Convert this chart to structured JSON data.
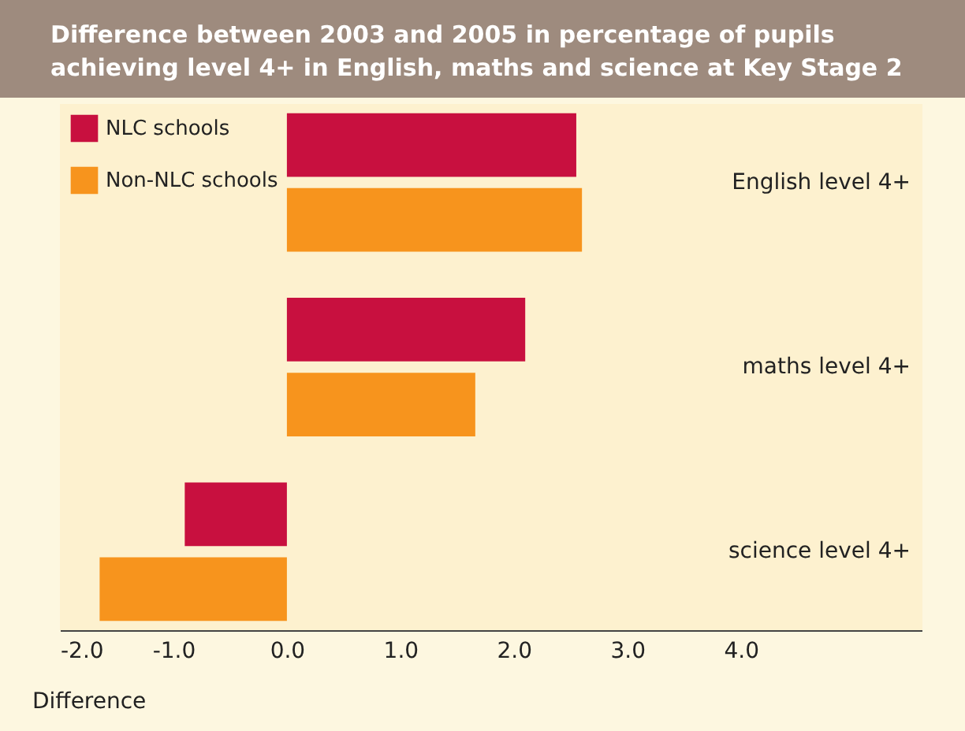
{
  "chart_data": {
    "type": "bar",
    "orientation": "horizontal",
    "title": "Difference between 2003 and 2005 in percentage of pupils achieving level 4+ in English, maths and science at Key Stage 2",
    "xlabel": "Difference",
    "categories": [
      "English level 4+",
      "maths level 4+",
      "science level 4+"
    ],
    "series": [
      {
        "name": "NLC schools",
        "color": "#c8103f",
        "values": [
          2.55,
          2.1,
          -0.9
        ]
      },
      {
        "name": "Non-NLC schools",
        "color": "#f7941d",
        "values": [
          2.6,
          1.66,
          -1.65
        ]
      }
    ],
    "xlim": [
      -2.0,
      5.6
    ],
    "xticks": [
      {
        "value": -2,
        "label": "-2.0"
      },
      {
        "value": -1,
        "label": "-1.0"
      },
      {
        "value": 0,
        "label": "0.0"
      },
      {
        "value": 1,
        "label": "1.0"
      },
      {
        "value": 2,
        "label": "2.0"
      },
      {
        "value": 3,
        "label": "3.0"
      },
      {
        "value": 4,
        "label": "4.0"
      }
    ],
    "grid": false,
    "legend": "top left"
  }
}
